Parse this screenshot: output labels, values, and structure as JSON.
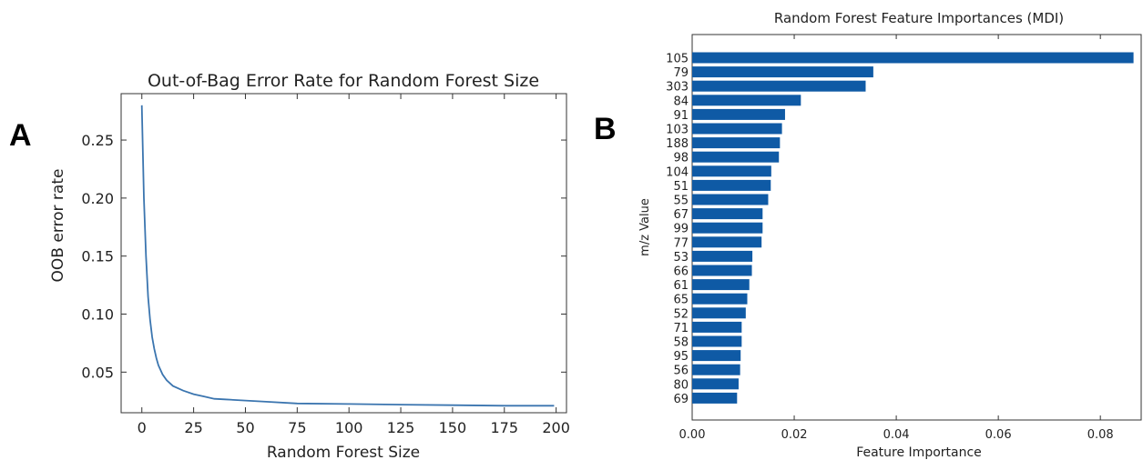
{
  "panels": {
    "a_label": "A",
    "b_label": "B"
  },
  "chart_data": [
    {
      "type": "line",
      "title": "Out-of-Bag Error Rate for Random Forest Size",
      "xlabel": "Random Forest Size",
      "ylabel": "OOB error rate",
      "xlim": [
        -10,
        205
      ],
      "ylim": [
        0.015,
        0.29
      ],
      "xticks": [
        0,
        25,
        50,
        75,
        100,
        125,
        150,
        175,
        200
      ],
      "yticks": [
        0.05,
        0.1,
        0.15,
        0.2,
        0.25
      ],
      "ytick_labels": [
        "0.05",
        "0.10",
        "0.15",
        "0.20",
        "0.25"
      ],
      "grid": false,
      "color": "#3b75af",
      "series": [
        {
          "x": [
            0,
            1,
            2,
            3,
            4,
            5,
            6,
            7,
            8,
            10,
            12,
            15,
            20,
            25,
            30,
            35,
            40,
            50,
            60,
            75,
            100,
            125,
            150,
            175,
            199
          ],
          "y": [
            0.28,
            0.2,
            0.15,
            0.115,
            0.095,
            0.08,
            0.07,
            0.062,
            0.056,
            0.048,
            0.043,
            0.038,
            0.034,
            0.031,
            0.029,
            0.027,
            0.0265,
            0.0255,
            0.0245,
            0.023,
            0.0225,
            0.022,
            0.0215,
            0.021,
            0.021
          ]
        }
      ]
    },
    {
      "type": "bar",
      "orientation": "horizontal",
      "title": "Random Forest Feature Importances (MDI)",
      "xlabel": "Feature Importance",
      "ylabel": "m/z Value",
      "xlim": [
        0,
        0.088
      ],
      "xticks": [
        0.0,
        0.02,
        0.04,
        0.06,
        0.08
      ],
      "xtick_labels": [
        "0.00",
        "0.02",
        "0.04",
        "0.06",
        "0.08"
      ],
      "grid": false,
      "color": "#0f5aa5",
      "categories": [
        "105",
        "79",
        "303",
        "84",
        "91",
        "103",
        "188",
        "98",
        "104",
        "51",
        "55",
        "67",
        "99",
        "77",
        "53",
        "66",
        "61",
        "65",
        "52",
        "71",
        "58",
        "95",
        "56",
        "80",
        "69"
      ],
      "values": [
        0.0865,
        0.0355,
        0.034,
        0.0213,
        0.0182,
        0.0176,
        0.0172,
        0.017,
        0.0155,
        0.0154,
        0.0149,
        0.0138,
        0.0138,
        0.0136,
        0.0118,
        0.0117,
        0.0112,
        0.0108,
        0.0105,
        0.0097,
        0.0097,
        0.0095,
        0.0094,
        0.0091,
        0.0088
      ]
    }
  ]
}
